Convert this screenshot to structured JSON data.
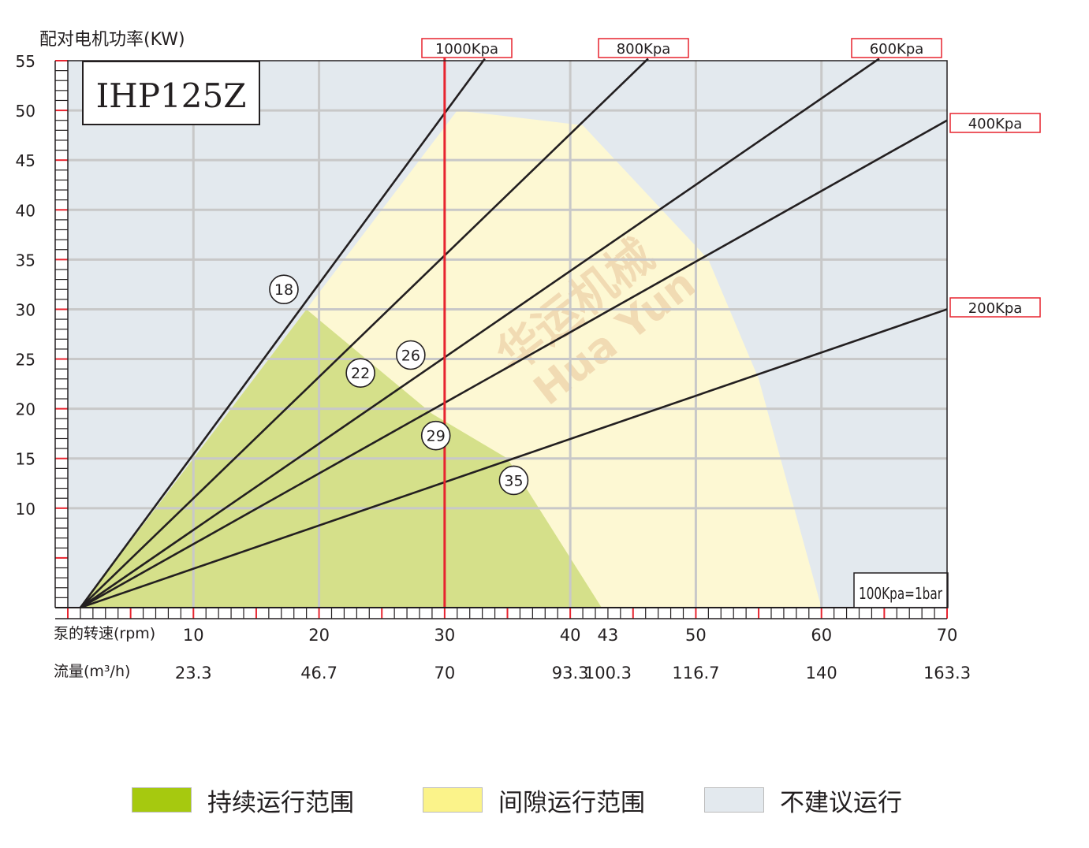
{
  "chart_data": {
    "type": "line",
    "model": "IHP125Z",
    "ylabel": "配对电机功率(KW)",
    "x_axis_label": "泵的转速(rpm)",
    "flow_label": "流量(m³/h)",
    "note": "100Kpa=1bar",
    "xlim": [
      0,
      70
    ],
    "ylim": [
      0,
      55
    ],
    "y_ticks": [
      10,
      15,
      20,
      25,
      30,
      35,
      40,
      45,
      50,
      55
    ],
    "x_ticks": [
      {
        "rpm": 10,
        "label": "10",
        "flow": "23.3"
      },
      {
        "rpm": 20,
        "label": "20",
        "flow": "46.7"
      },
      {
        "rpm": 30,
        "label": "30",
        "flow": "70"
      },
      {
        "rpm": 40,
        "label": "40",
        "flow": "93.3"
      },
      {
        "rpm": 43,
        "label": "43",
        "flow": "100.3"
      },
      {
        "rpm": 50,
        "label": "50",
        "flow": "116.7"
      },
      {
        "rpm": 60,
        "label": "60",
        "flow": "140"
      },
      {
        "rpm": 70,
        "label": "70",
        "flow": "163.3"
      }
    ],
    "grid": true,
    "series": [
      {
        "name": "1000Kpa",
        "points": [
          [
            1,
            0
          ],
          [
            33.2,
            55.2
          ]
        ]
      },
      {
        "name": "800Kpa",
        "points": [
          [
            1,
            0
          ],
          [
            46.2,
            55.2
          ]
        ]
      },
      {
        "name": "600Kpa",
        "points": [
          [
            1,
            0
          ],
          [
            64.6,
            55.2
          ]
        ]
      },
      {
        "name": "400Kpa",
        "points": [
          [
            1,
            0
          ],
          [
            70,
            49.0
          ]
        ]
      },
      {
        "name": "200Kpa",
        "points": [
          [
            1,
            0
          ],
          [
            70,
            30.0
          ]
        ]
      }
    ],
    "max_speed_line": {
      "rpm": 30
    },
    "continuous_region": [
      [
        1,
        0
      ],
      [
        19,
        30
      ],
      [
        29,
        19.5
      ],
      [
        35,
        15
      ],
      [
        42.5,
        0
      ]
    ],
    "intermittent_region": [
      [
        1,
        0
      ],
      [
        31,
        50
      ],
      [
        41,
        48.5
      ],
      [
        51,
        35
      ],
      [
        55,
        23
      ],
      [
        60,
        0
      ]
    ],
    "markers": [
      {
        "label": "18",
        "x": 17.2,
        "y": 32.0
      },
      {
        "label": "22",
        "x": 23.3,
        "y": 23.6
      },
      {
        "label": "26",
        "x": 27.3,
        "y": 25.4
      },
      {
        "label": "29",
        "x": 29.3,
        "y": 17.3
      },
      {
        "label": "35",
        "x": 35.5,
        "y": 12.8
      }
    ],
    "watermark": {
      "cn": "华运机械",
      "en": "Hua Yun"
    },
    "colors": {
      "not_recommended": "#e3e9ee",
      "intermittent": "#fdf8d3",
      "continuous": "#d5e08a",
      "grid": "#c8c8c8",
      "curve": "#231f20",
      "max_speed": "#e7242f",
      "label_border": "#e7242f"
    }
  },
  "legend": [
    {
      "label": "持续运行范围",
      "color": "#a6c90f"
    },
    {
      "label": "间隙运行范围",
      "color": "#fbf38a"
    },
    {
      "label": "不建议运行",
      "color": "#e3e9ee"
    }
  ]
}
